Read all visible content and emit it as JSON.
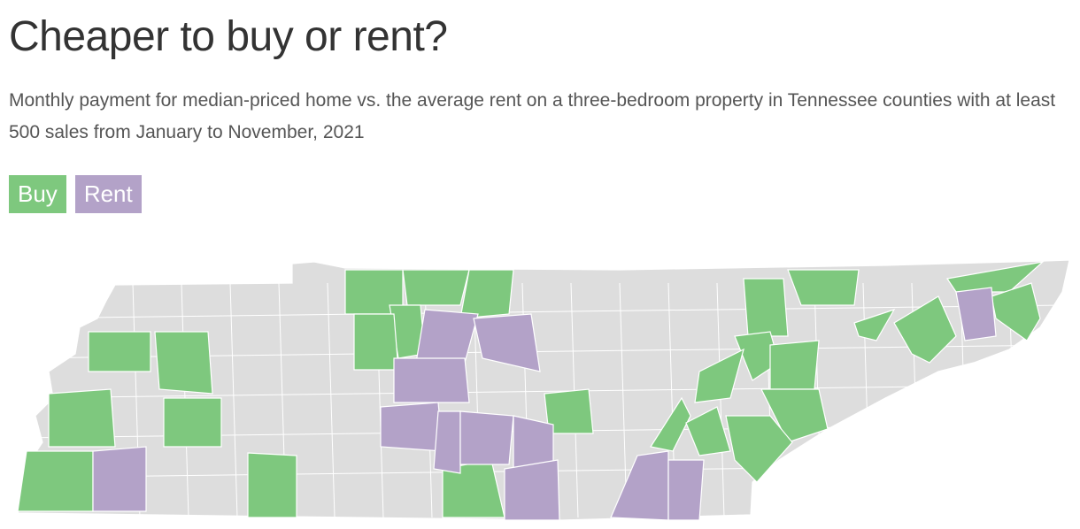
{
  "header": {
    "title": "Cheaper to buy or rent?",
    "subtitle": "Monthly payment for median-priced home vs. the average rent on a three-bedroom property in Tennessee counties with at least 500 sales from January to November, 2021"
  },
  "legend": [
    {
      "label": "Buy",
      "color": "#7ec87e"
    },
    {
      "label": "Rent",
      "color": "#b3a2c8"
    }
  ],
  "map": {
    "region": "Tennessee counties",
    "no_data_color": "#dddddd",
    "border_color": "#ffffff"
  }
}
